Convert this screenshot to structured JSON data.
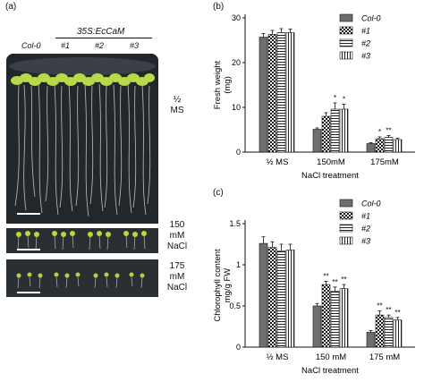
{
  "panel_a": {
    "label": "(a)",
    "transgene": "35S:EcCaM",
    "genotypes": [
      "Col-0",
      "#1",
      "#2",
      "#3"
    ],
    "conditions": [
      {
        "lines": [
          "½",
          "MS"
        ]
      },
      {
        "lines": [
          "150",
          "mM",
          "NaCl"
        ]
      },
      {
        "lines": [
          "175",
          "mM",
          "NaCl"
        ]
      }
    ]
  },
  "chart_data": [
    {
      "id": "b",
      "panel_label": "(b)",
      "type": "bar",
      "ylabel": "Fresh weight (mg)",
      "ylabel_lines": [
        "Fresh weight",
        "(mg)"
      ],
      "xlabel": "NaCl treatment",
      "categories": [
        "½ MS",
        "150mM",
        "175mM"
      ],
      "yticks": [
        0,
        10,
        20,
        30
      ],
      "ylim": [
        0,
        30
      ],
      "legend_placement": "top-right",
      "series": [
        {
          "name": "Col-0",
          "values": [
            25.7,
            5.1,
            1.9
          ],
          "errors": [
            0.8,
            0.3,
            0.2
          ],
          "sig": [
            "",
            "",
            ""
          ]
        },
        {
          "name": "#1",
          "values": [
            26.3,
            8.0,
            3.0
          ],
          "errors": [
            0.9,
            0.8,
            0.4
          ],
          "sig": [
            "",
            "",
            "*"
          ]
        },
        {
          "name": "#2",
          "values": [
            26.7,
            9.6,
            3.3
          ],
          "errors": [
            0.9,
            1.4,
            0.4
          ],
          "sig": [
            "",
            "*",
            "**"
          ]
        },
        {
          "name": "#3",
          "values": [
            26.7,
            9.6,
            2.8
          ],
          "errors": [
            0.8,
            1.1,
            0.3
          ],
          "sig": [
            "",
            "*",
            ""
          ]
        }
      ]
    },
    {
      "id": "c",
      "panel_label": "(c)",
      "type": "bar",
      "ylabel": "Chlorophyll content mg/g FW",
      "ylabel_lines": [
        "Chlorophyll content",
        "mg/g FW"
      ],
      "xlabel": "NaCl treatment",
      "categories": [
        "½ MS",
        "150 mM",
        "175 mM"
      ],
      "yticks": [
        0,
        0.5,
        1,
        1.5
      ],
      "ylim": [
        0,
        1.5
      ],
      "legend_placement": "top-right",
      "series": [
        {
          "name": "Col-0",
          "values": [
            1.26,
            0.5,
            0.18
          ],
          "errors": [
            0.08,
            0.03,
            0.02
          ],
          "sig": [
            "",
            "",
            ""
          ]
        },
        {
          "name": "#1",
          "values": [
            1.21,
            0.76,
            0.39
          ],
          "errors": [
            0.07,
            0.04,
            0.05
          ],
          "sig": [
            "",
            "**",
            "**"
          ]
        },
        {
          "name": "#2",
          "values": [
            1.17,
            0.68,
            0.36
          ],
          "errors": [
            0.08,
            0.05,
            0.03
          ],
          "sig": [
            "",
            "**",
            "**"
          ]
        },
        {
          "name": "#3",
          "values": [
            1.18,
            0.71,
            0.33
          ],
          "errors": [
            0.07,
            0.05,
            0.03
          ],
          "sig": [
            "",
            "**",
            "**"
          ]
        }
      ]
    }
  ]
}
